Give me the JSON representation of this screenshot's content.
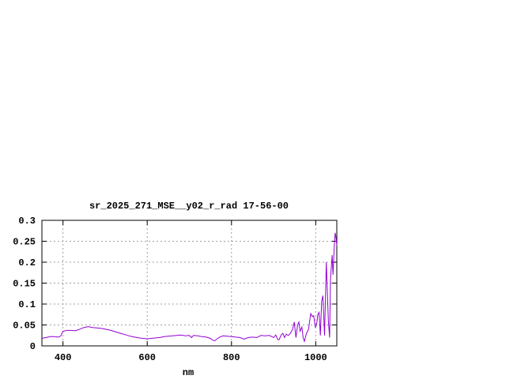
{
  "chart_data": {
    "type": "line",
    "title": "sr_2025_271_MSE__y02_r_rad 17-56-00",
    "xlabel": "nm",
    "ylabel": "",
    "xlim": [
      350,
      1050
    ],
    "ylim": [
      0,
      0.3
    ],
    "grid": true,
    "legend": "none",
    "x_ticks": [
      400,
      600,
      800,
      1000
    ],
    "y_ticks": [
      0,
      0.05,
      0.1,
      0.15,
      0.2,
      0.25,
      0.3
    ],
    "x_tick_labels": [
      "400",
      "600",
      "800",
      "1000"
    ],
    "y_tick_labels": [
      "0",
      "0.05",
      "0.1",
      "0.15",
      "0.2",
      "0.25",
      "0.3"
    ],
    "line_color": "#9400D3",
    "series": [
      {
        "x": [
          350,
          360,
          370,
          380,
          390,
          395,
          400,
          410,
          420,
          430,
          440,
          450,
          460,
          470,
          480,
          490,
          500,
          510,
          520,
          530,
          540,
          550,
          560,
          570,
          580,
          590,
          600,
          610,
          620,
          630,
          640,
          650,
          660,
          670,
          680,
          690,
          700,
          705,
          710,
          720,
          730,
          740,
          750,
          755,
          760,
          770,
          780,
          790,
          800,
          810,
          820,
          830,
          840,
          850,
          860,
          870,
          880,
          890,
          900,
          905,
          910,
          913,
          918,
          922,
          926,
          930,
          935,
          940,
          945,
          949,
          953,
          957,
          960,
          963,
          967,
          970,
          973,
          978,
          983,
          986,
          988,
          992,
          995,
          999,
          1002,
          1005,
          1008,
          1011,
          1014,
          1017,
          1021,
          1024,
          1025,
          1027,
          1030,
          1033,
          1035,
          1039,
          1041,
          1044,
          1046,
          1048,
          1050
        ],
        "y": [
          0.018,
          0.02,
          0.022,
          0.022,
          0.021,
          0.024,
          0.035,
          0.037,
          0.037,
          0.036,
          0.04,
          0.044,
          0.046,
          0.044,
          0.043,
          0.042,
          0.04,
          0.038,
          0.035,
          0.032,
          0.029,
          0.026,
          0.023,
          0.021,
          0.019,
          0.018,
          0.017,
          0.018,
          0.019,
          0.02,
          0.022,
          0.023,
          0.024,
          0.025,
          0.026,
          0.024,
          0.025,
          0.02,
          0.025,
          0.024,
          0.022,
          0.021,
          0.018,
          0.014,
          0.012,
          0.02,
          0.024,
          0.023,
          0.022,
          0.021,
          0.02,
          0.016,
          0.02,
          0.021,
          0.02,
          0.025,
          0.024,
          0.025,
          0.02,
          0.026,
          0.015,
          0.015,
          0.026,
          0.03,
          0.02,
          0.028,
          0.025,
          0.03,
          0.04,
          0.057,
          0.02,
          0.05,
          0.057,
          0.035,
          0.045,
          0.02,
          0.011,
          0.03,
          0.04,
          0.062,
          0.077,
          0.07,
          0.072,
          0.045,
          0.05,
          0.075,
          0.08,
          0.025,
          0.106,
          0.12,
          0.025,
          0.15,
          0.2,
          0.15,
          0.06,
          0.02,
          0.16,
          0.217,
          0.17,
          0.238,
          0.27,
          0.26,
          0.24
        ]
      }
    ]
  }
}
